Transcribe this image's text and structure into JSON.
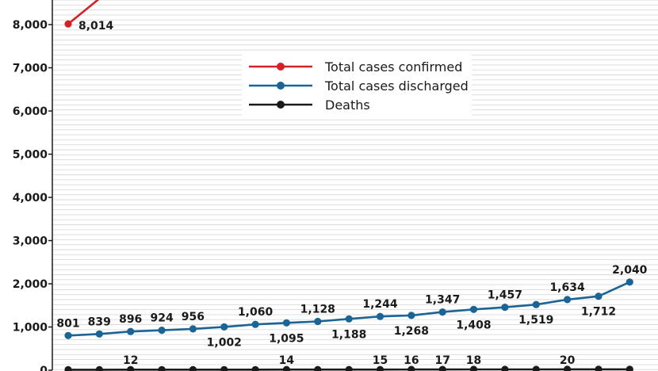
{
  "chart_data": {
    "type": "line",
    "title": "",
    "xlabel": "",
    "ylabel": "",
    "ylim": [
      0,
      8500
    ],
    "y_ticks": [
      0,
      1000,
      2000,
      3000,
      4000,
      5000,
      6000,
      7000,
      8000
    ],
    "y_tick_labels": [
      "0",
      "1,000",
      "2,000",
      "3,000",
      "4,000",
      "5,000",
      "6,000",
      "7,000",
      "8,000"
    ],
    "grid": true,
    "legend_position": "top-right",
    "colors": {
      "confirmed": "#d42027",
      "discharged": "#1a6496",
      "deaths": "#1a1a1a",
      "grid": "#d9d9d9"
    },
    "series": [
      {
        "name": "Total cases confirmed",
        "key": "confirmed",
        "values": [
          8014,
          8600
        ],
        "labels": [
          "8,014",
          ""
        ]
      },
      {
        "name": "Total cases discharged",
        "key": "discharged",
        "values": [
          801,
          839,
          896,
          924,
          956,
          1002,
          1060,
          1095,
          1128,
          1188,
          1244,
          1268,
          1347,
          1408,
          1457,
          1519,
          1634,
          1712,
          2040
        ],
        "labels": [
          "801",
          "839",
          "896",
          "924",
          "956",
          "1,002",
          "1,060",
          "1,095",
          "1,128",
          "1,188",
          "1,244",
          "1,268",
          "1,347",
          "1,408",
          "1,457",
          "1,519",
          "1,634",
          "1,712",
          "2,040"
        ]
      },
      {
        "name": "Deaths",
        "key": "deaths",
        "values": [
          11,
          11,
          12,
          12,
          13,
          13,
          13,
          14,
          14,
          14,
          15,
          16,
          17,
          18,
          18,
          19,
          20,
          20,
          20
        ],
        "labels": [
          "",
          "",
          "12",
          "",
          "",
          "",
          "",
          "14",
          "",
          "",
          "15",
          "16",
          "17",
          "18",
          "",
          "",
          "20",
          "",
          ""
        ]
      }
    ]
  }
}
